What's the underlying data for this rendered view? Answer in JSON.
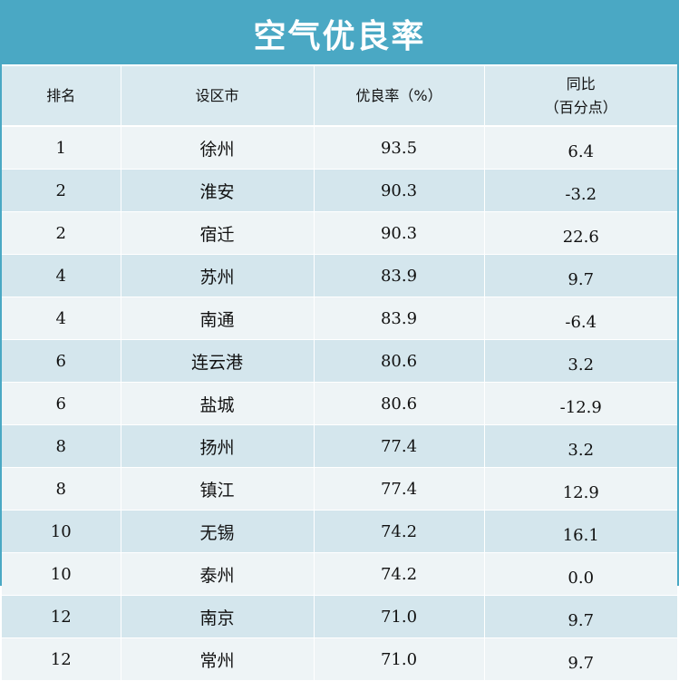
{
  "title": "空气优良率",
  "headers": {
    "rank": "排名",
    "city": "设区市",
    "rate": "优良率（%）",
    "change_line1": "同比",
    "change_line2": "（百分点）"
  },
  "rows": [
    {
      "rank": "1",
      "city": "徐州",
      "rate": "93.5",
      "change": "6.4"
    },
    {
      "rank": "2",
      "city": "淮安",
      "rate": "90.3",
      "change": "-3.2"
    },
    {
      "rank": "2",
      "city": "宿迁",
      "rate": "90.3",
      "change": "22.6"
    },
    {
      "rank": "4",
      "city": "苏州",
      "rate": "83.9",
      "change": "9.7"
    },
    {
      "rank": "4",
      "city": "南通",
      "rate": "83.9",
      "change": "-6.4"
    },
    {
      "rank": "6",
      "city": "连云港",
      "rate": "80.6",
      "change": "3.2"
    },
    {
      "rank": "6",
      "city": "盐城",
      "rate": "80.6",
      "change": "-12.9"
    },
    {
      "rank": "8",
      "city": "扬州",
      "rate": "77.4",
      "change": "3.2"
    },
    {
      "rank": "8",
      "city": "镇江",
      "rate": "77.4",
      "change": "12.9"
    },
    {
      "rank": "10",
      "city": "无锡",
      "rate": "74.2",
      "change": "16.1"
    },
    {
      "rank": "10",
      "city": "泰州",
      "rate": "74.2",
      "change": "0.0"
    },
    {
      "rank": "12",
      "city": "南京",
      "rate": "71.0",
      "change": "9.7"
    },
    {
      "rank": "12",
      "city": "常州",
      "rate": "71.0",
      "change": "9.7"
    }
  ],
  "colors": {
    "title_bg": "#4aa8c4",
    "header_bg": "#d9e9ef",
    "row_light": "#eef4f6",
    "row_dark": "#d4e6ed"
  }
}
